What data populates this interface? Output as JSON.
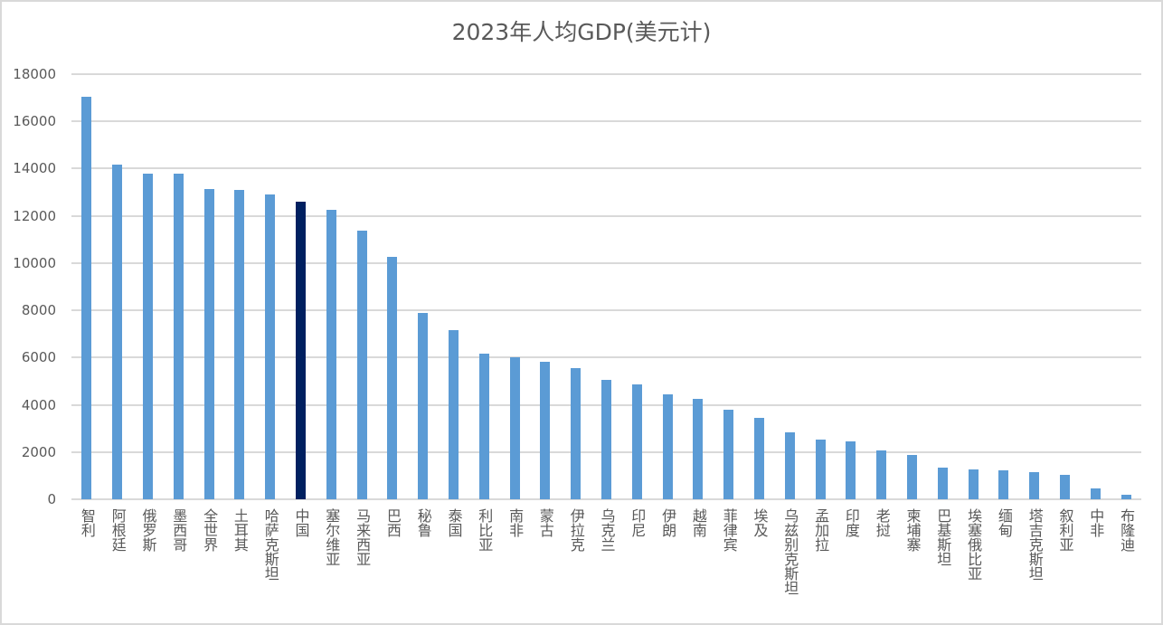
{
  "chart_data": {
    "type": "bar",
    "title": "2023年人均GDP(美元计)",
    "xlabel": "",
    "ylabel": "",
    "ylim": [
      0,
      18000
    ],
    "yticks": [
      0,
      2000,
      4000,
      6000,
      8000,
      10000,
      12000,
      14000,
      16000,
      18000
    ],
    "grid": true,
    "legend": "none",
    "highlight_color": "#002060",
    "bar_color": "#5b9bd5",
    "highlighted_category": "中国",
    "categories": [
      "智利",
      "阿根廷",
      "俄罗斯",
      "墨西哥",
      "全世界",
      "土耳其",
      "哈萨克斯坦",
      "中国",
      "塞尔维亚",
      "马来西亚",
      "巴西",
      "秘鲁",
      "泰国",
      "利比亚",
      "南非",
      "蒙古",
      "伊拉克",
      "乌克兰",
      "印尼",
      "伊朗",
      "越南",
      "菲律宾",
      "埃及",
      "乌兹别克斯坦",
      "孟加拉",
      "印度",
      "老挝",
      "柬埔寨",
      "巴基斯坦",
      "埃塞俄比亚",
      "缅甸",
      "塔吉克斯坦",
      "叙利亚",
      "中非",
      "布隆迪"
    ],
    "values": [
      17050,
      14170,
      13790,
      13790,
      13140,
      13100,
      12910,
      12600,
      12260,
      11380,
      10260,
      7890,
      7160,
      6170,
      6010,
      5820,
      5550,
      5060,
      4860,
      4440,
      4250,
      3790,
      3450,
      2830,
      2530,
      2450,
      2070,
      1880,
      1340,
      1260,
      1230,
      1150,
      1030,
      460,
      190
    ]
  }
}
